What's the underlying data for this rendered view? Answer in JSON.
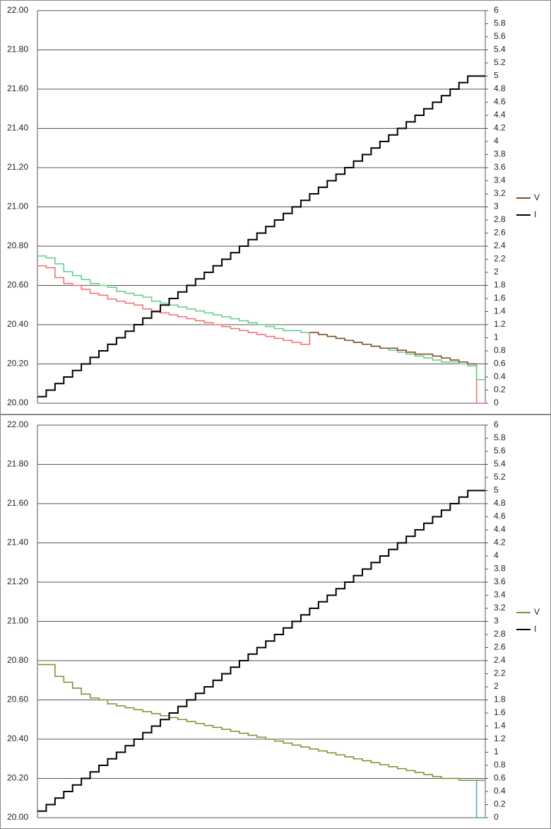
{
  "chart_data": [
    {
      "type": "line",
      "step": true,
      "grid": true,
      "legend": "right",
      "categories": [
        null,
        null,
        null,
        null,
        null,
        null,
        null,
        null,
        null,
        null,
        null,
        null,
        null,
        null,
        null,
        null,
        null,
        null,
        null,
        null,
        null,
        null,
        null,
        null,
        null,
        null,
        null,
        null,
        null,
        null,
        null,
        null,
        null,
        null,
        null,
        null,
        null,
        null,
        null,
        null,
        null,
        null,
        null,
        null,
        null,
        null,
        null,
        null,
        null,
        null,
        null
      ],
      "ylim": [
        20,
        22
      ],
      "yticks": [
        {
          "value": 20,
          "label": "20.00"
        },
        {
          "value": 20.2,
          "label": "20.20"
        },
        {
          "value": 20.4,
          "label": "20.40"
        },
        {
          "value": 20.6,
          "label": "20.60"
        },
        {
          "value": 20.8,
          "label": "20.80"
        },
        {
          "value": 21,
          "label": "21.00"
        },
        {
          "value": 21.2,
          "label": "21.20"
        },
        {
          "value": 21.4,
          "label": "21.40"
        },
        {
          "value": 21.6,
          "label": "21.60"
        },
        {
          "value": 21.8,
          "label": "21.80"
        },
        {
          "value": 22,
          "label": "22.00"
        }
      ],
      "y2lim": [
        0,
        6
      ],
      "y2ticks": [
        0,
        0.2,
        0.4,
        0.6,
        0.8,
        1,
        1.2,
        1.4,
        1.6,
        1.8,
        2,
        2.2,
        2.4,
        2.6,
        2.8,
        3,
        3.2,
        3.4,
        3.6,
        3.8,
        4,
        4.2,
        4.4,
        4.6,
        4.8,
        5,
        5.2,
        5.4,
        5.6,
        5.8,
        6
      ],
      "series": [
        {
          "color": "#f26d6d",
          "values": [
            20.7,
            20.69,
            20.64,
            20.61,
            20.6,
            20.58,
            20.56,
            20.55,
            20.53,
            20.52,
            20.51,
            20.5,
            20.48,
            20.47,
            20.46,
            20.45,
            20.44,
            20.43,
            20.42,
            20.41,
            20.4,
            20.39,
            20.38,
            20.37,
            20.36,
            20.35,
            20.34,
            20.33,
            20.32,
            20.31,
            20.3,
            20.36,
            20.35,
            20.34,
            20.33,
            20.32,
            20.31,
            20.3,
            20.29,
            20.28,
            20.28,
            20.27,
            20.26,
            20.25,
            20.25,
            20.24,
            20.23,
            20.22,
            20.21,
            20.2,
            20.0
          ]
        },
        {
          "color": "#5dcc8c",
          "values": [
            20.75,
            20.74,
            20.71,
            20.67,
            20.65,
            20.63,
            20.61,
            20.6,
            20.59,
            20.57,
            20.56,
            20.55,
            20.54,
            20.52,
            20.51,
            20.5,
            20.49,
            20.48,
            20.47,
            20.46,
            20.45,
            20.44,
            20.43,
            20.42,
            20.41,
            20.4,
            20.39,
            20.38,
            20.37,
            20.37,
            20.36,
            20.36,
            20.35,
            20.34,
            20.33,
            20.32,
            20.31,
            20.3,
            20.29,
            20.28,
            20.27,
            20.26,
            20.25,
            20.24,
            20.23,
            20.22,
            20.21,
            20.21,
            20.2,
            20.19,
            20.12
          ]
        },
        {
          "name": "V",
          "color": "#7f4f21",
          "values": [
            null,
            null,
            null,
            null,
            null,
            null,
            null,
            null,
            null,
            null,
            null,
            null,
            null,
            null,
            null,
            null,
            null,
            null,
            null,
            null,
            null,
            null,
            null,
            null,
            null,
            null,
            null,
            null,
            null,
            null,
            null,
            20.36,
            20.35,
            20.34,
            20.33,
            20.32,
            20.31,
            20.3,
            20.29,
            20.28,
            20.28,
            20.27,
            20.26,
            20.25,
            20.25,
            20.24,
            20.23,
            20.22,
            20.21,
            20.2,
            null
          ]
        },
        {
          "name": "I",
          "color": "#000000",
          "axis": "y2",
          "values": [
            0.1,
            0.2,
            0.3,
            0.4,
            0.5,
            0.6,
            0.7,
            0.8,
            0.9,
            1.0,
            1.1,
            1.2,
            1.3,
            1.4,
            1.5,
            1.6,
            1.7,
            1.8,
            1.9,
            2.0,
            2.1,
            2.2,
            2.3,
            2.4,
            2.5,
            2.6,
            2.7,
            2.8,
            2.9,
            3.0,
            3.1,
            3.2,
            3.3,
            3.4,
            3.5,
            3.6,
            3.7,
            3.8,
            3.9,
            4.0,
            4.1,
            4.2,
            4.3,
            4.4,
            4.5,
            4.6,
            4.7,
            4.8,
            4.9,
            5.0,
            5.0
          ]
        }
      ]
    },
    {
      "type": "line",
      "step": true,
      "grid": true,
      "legend": "right",
      "categories": [
        null,
        null,
        null,
        null,
        null,
        null,
        null,
        null,
        null,
        null,
        null,
        null,
        null,
        null,
        null,
        null,
        null,
        null,
        null,
        null,
        null,
        null,
        null,
        null,
        null,
        null,
        null,
        null,
        null,
        null,
        null,
        null,
        null,
        null,
        null,
        null,
        null,
        null,
        null,
        null,
        null,
        null,
        null,
        null,
        null,
        null,
        null,
        null,
        null,
        null,
        null
      ],
      "ylim": [
        20,
        22
      ],
      "yticks": [
        {
          "value": 20,
          "label": "20.00"
        },
        {
          "value": 20.2,
          "label": "20.20"
        },
        {
          "value": 20.4,
          "label": "20.40"
        },
        {
          "value": 20.6,
          "label": "20.60"
        },
        {
          "value": 20.8,
          "label": "20.80"
        },
        {
          "value": 21,
          "label": "21.00"
        },
        {
          "value": 21.2,
          "label": "21.20"
        },
        {
          "value": 21.4,
          "label": "21.40"
        },
        {
          "value": 21.6,
          "label": "21.60"
        },
        {
          "value": 21.8,
          "label": "21.80"
        },
        {
          "value": 22,
          "label": "22.00"
        }
      ],
      "y2lim": [
        0,
        6
      ],
      "y2ticks": [
        0,
        0.2,
        0.4,
        0.6,
        0.8,
        1,
        1.2,
        1.4,
        1.6,
        1.8,
        2,
        2.2,
        2.4,
        2.6,
        2.8,
        3,
        3.2,
        3.4,
        3.6,
        3.8,
        4,
        4.2,
        4.4,
        4.6,
        4.8,
        5,
        5.2,
        5.4,
        5.6,
        5.8,
        6
      ],
      "series": [
        {
          "color": "#ffd966",
          "values": [
            20.78,
            20.78,
            20.72,
            20.69,
            20.66,
            20.63,
            20.61,
            20.6,
            20.58,
            20.57,
            20.56,
            20.55,
            20.54,
            20.53,
            20.52,
            20.51,
            20.5,
            20.49,
            20.48,
            20.47,
            20.46,
            20.45,
            20.44,
            20.43,
            20.42,
            20.41,
            20.4,
            20.39,
            20.38,
            20.37,
            20.36,
            20.35,
            20.34,
            20.33,
            20.32,
            20.31,
            20.3,
            20.29,
            20.28,
            20.27,
            20.26,
            20.25,
            20.24,
            20.23,
            20.22,
            20.21,
            20.2,
            20.2,
            20.19,
            20.19,
            20.0
          ]
        },
        {
          "color": "#4bacc6",
          "values": [
            null,
            null,
            null,
            null,
            null,
            null,
            null,
            null,
            null,
            null,
            null,
            null,
            null,
            null,
            null,
            null,
            null,
            null,
            null,
            null,
            null,
            null,
            null,
            null,
            null,
            null,
            null,
            null,
            null,
            null,
            null,
            null,
            null,
            null,
            null,
            null,
            null,
            null,
            null,
            null,
            null,
            null,
            null,
            null,
            null,
            null,
            null,
            null,
            null,
            20.19,
            20.0
          ]
        },
        {
          "name": "V",
          "color": "#77933c",
          "values": [
            20.78,
            20.78,
            20.72,
            20.69,
            20.66,
            20.63,
            20.61,
            20.6,
            20.58,
            20.57,
            20.56,
            20.55,
            20.54,
            20.53,
            20.52,
            20.51,
            20.5,
            20.49,
            20.48,
            20.47,
            20.46,
            20.45,
            20.44,
            20.43,
            20.42,
            20.41,
            20.4,
            20.39,
            20.38,
            20.37,
            20.36,
            20.35,
            20.34,
            20.33,
            20.32,
            20.31,
            20.3,
            20.29,
            20.28,
            20.27,
            20.26,
            20.25,
            20.24,
            20.23,
            20.22,
            20.21,
            20.2,
            20.2,
            20.19,
            20.19,
            20.19
          ]
        },
        {
          "name": "I",
          "color": "#000000",
          "axis": "y2",
          "values": [
            0.1,
            0.2,
            0.3,
            0.4,
            0.5,
            0.6,
            0.7,
            0.8,
            0.9,
            1.0,
            1.1,
            1.2,
            1.3,
            1.4,
            1.5,
            1.6,
            1.7,
            1.8,
            1.9,
            2.0,
            2.1,
            2.2,
            2.3,
            2.4,
            2.5,
            2.6,
            2.7,
            2.8,
            2.9,
            3.0,
            3.1,
            3.2,
            3.3,
            3.4,
            3.5,
            3.6,
            3.7,
            3.8,
            3.9,
            4.0,
            4.1,
            4.2,
            4.3,
            4.4,
            4.5,
            4.6,
            4.7,
            4.8,
            4.9,
            5.0,
            5.0
          ]
        }
      ]
    }
  ]
}
